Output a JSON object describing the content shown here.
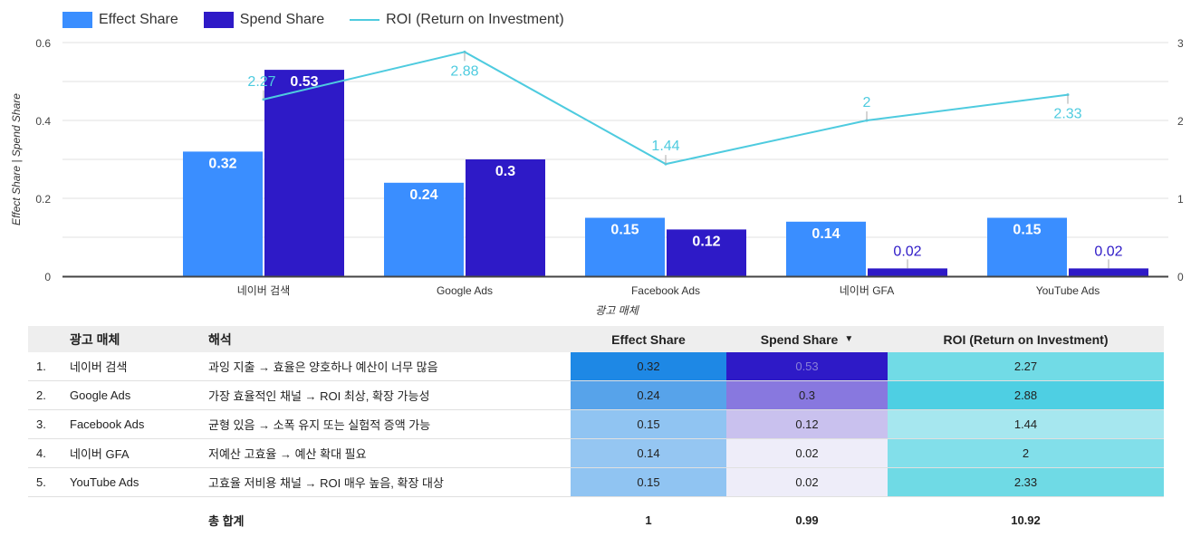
{
  "chart_data": {
    "type": "bar",
    "title": "",
    "categories": [
      "네이버 검색",
      "Google Ads",
      "Facebook Ads",
      "네이버 GFA",
      "YouTube Ads"
    ],
    "series": [
      {
        "name": "Effect Share",
        "kind": "bar",
        "axis": "left",
        "color": "#3a8eff",
        "values": [
          0.32,
          0.24,
          0.15,
          0.14,
          0.15
        ],
        "labels": [
          "0.32",
          "0.24",
          "0.15",
          "0.14",
          "0.15"
        ]
      },
      {
        "name": "Spend Share",
        "kind": "bar",
        "axis": "left",
        "color": "#2e1ac7",
        "values": [
          0.53,
          0.3,
          0.12,
          0.02,
          0.02
        ],
        "labels": [
          "0.53",
          "0.3",
          "0.12",
          "0.02",
          "0.02"
        ]
      },
      {
        "name": "ROI (Return on Investment)",
        "kind": "line",
        "axis": "right",
        "color": "#4ecbdf",
        "values": [
          2.27,
          2.88,
          1.44,
          2,
          2.33
        ],
        "labels": [
          "2.27",
          "2.88",
          "1.44",
          "2",
          "2.33"
        ]
      }
    ],
    "xlabel": "광고 매체",
    "ylabel": "Effect Share | Spend Share",
    "ylim": [
      0,
      0.6
    ],
    "yticks": [
      "0",
      "0.2",
      "0.4",
      "0.6"
    ],
    "y2lim": [
      0,
      3
    ],
    "y2ticks": [
      "0",
      "1",
      "2",
      "3"
    ],
    "grid": true,
    "legend_position": "top-left"
  },
  "table": {
    "headers": {
      "index": "",
      "media": "광고 매체",
      "interpretation": "해석",
      "effect": "Effect Share",
      "spend": "Spend Share",
      "roi": "ROI (Return on Investment)"
    },
    "sort_indicator": "▼",
    "rows": [
      {
        "index": "1.",
        "media": "네이버 검색",
        "interpretation": "과잉 지출 → 효율은 양호하나 예산이 너무 많음",
        "effect": "0.32",
        "spend": "0.53",
        "roi": "2.27"
      },
      {
        "index": "2.",
        "media": "Google Ads",
        "interpretation": "가장 효율적인 채널 → ROI 최상, 확장 가능성",
        "effect": "0.24",
        "spend": "0.3",
        "roi": "2.88"
      },
      {
        "index": "3.",
        "media": "Facebook Ads",
        "interpretation": "균형 있음 → 소폭 유지 또는 실험적 증액 가능",
        "effect": "0.15",
        "spend": "0.12",
        "roi": "1.44"
      },
      {
        "index": "4.",
        "media": "네이버 GFA",
        "interpretation": "저예산 고효율 → 예산 확대 필요",
        "effect": "0.14",
        "spend": "0.02",
        "roi": "2"
      },
      {
        "index": "5.",
        "media": "YouTube Ads",
        "interpretation": "고효율 저비용 채널 → ROI 매우 높음, 확장 대상",
        "effect": "0.15",
        "spend": "0.02",
        "roi": "2.33"
      }
    ],
    "heat_colors": {
      "effect": [
        "#1e88e5",
        "#57a3ea",
        "#90c4f2",
        "#95c6f2",
        "#90c4f2"
      ],
      "spend": [
        "#2e1ac7",
        "#8878df",
        "#c9c1ee",
        "#eeedf9",
        "#eeedf9"
      ],
      "roi": [
        "#71dbe6",
        "#4ecfe3",
        "#a6e7ef",
        "#82dfea",
        "#6fdae5"
      ],
      "spend_text": [
        "#8a80d8",
        "#222222",
        "#222222",
        "#222222",
        "#222222"
      ]
    },
    "totals": {
      "label": "총 합계",
      "effect": "1",
      "spend": "0.99",
      "roi": "10.92"
    }
  }
}
